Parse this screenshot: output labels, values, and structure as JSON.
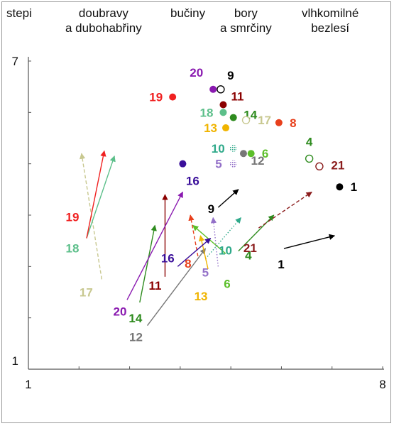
{
  "vegetation_labels": {
    "stepi": "stepi",
    "doubravy": "doubravy\na dubohabřiny",
    "buciny": "bučiny",
    "bory": "bory\na smrčiny",
    "bezlesi": "vlhkomilné\nbezlesí"
  },
  "chart_data": {
    "type": "scatter",
    "title": "",
    "xlabel": "",
    "ylabel": "",
    "xlim": [
      1,
      8
    ],
    "ylim": [
      1,
      7
    ],
    "x_ticks": [
      "1",
      "8"
    ],
    "y_ticks": [
      "1",
      "7"
    ],
    "grid": false,
    "series": [
      {
        "id": "1",
        "color": "#000000",
        "marker": "filled",
        "point": [
          7.15,
          4.55
        ],
        "arrow": {
          "from": [
            6.05,
            3.35
          ],
          "to": [
            7.05,
            3.6
          ],
          "style": "solid"
        }
      },
      {
        "id": "4",
        "color": "#2e8b1e",
        "marker": "open",
        "point": [
          6.55,
          5.1
        ],
        "arrow": {
          "from": [
            5.15,
            3.3
          ],
          "to": [
            5.85,
            4.0
          ],
          "style": "solid"
        }
      },
      {
        "id": "5",
        "color": "#9370c8",
        "marker": "hatched",
        "point": [
          5.05,
          5.0
        ],
        "arrow": {
          "from": [
            4.75,
            3.0
          ],
          "to": [
            4.65,
            3.95
          ],
          "style": "dotted"
        }
      },
      {
        "id": "6",
        "color": "#5cbf2a",
        "marker": "filled",
        "point": [
          5.4,
          5.2
        ],
        "arrow": {
          "from": [
            4.9,
            3.25
          ],
          "to": [
            4.25,
            3.8
          ],
          "style": "solid"
        }
      },
      {
        "id": "8",
        "color": "#e8401c",
        "marker": "filled",
        "point": [
          5.95,
          5.8
        ],
        "arrow": {
          "from": [
            4.35,
            3.2
          ],
          "to": [
            4.2,
            4.0
          ],
          "style": "dashed"
        }
      },
      {
        "id": "9",
        "color": "#000000",
        "marker": "open",
        "point": [
          4.8,
          6.45
        ],
        "arrow": {
          "from": [
            4.75,
            4.15
          ],
          "to": [
            5.15,
            4.5
          ],
          "style": "solid"
        }
      },
      {
        "id": "10",
        "color": "#2fa98a",
        "marker": "hatched",
        "point": [
          5.05,
          5.3
        ],
        "arrow": {
          "from": [
            4.5,
            3.15
          ],
          "to": [
            5.2,
            3.95
          ],
          "style": "dotted"
        }
      },
      {
        "id": "11",
        "color": "#8b0000",
        "marker": "filled",
        "point": [
          4.85,
          6.15
        ],
        "arrow": {
          "from": [
            3.7,
            2.8
          ],
          "to": [
            3.7,
            4.4
          ],
          "style": "solid"
        }
      },
      {
        "id": "12",
        "color": "#777777",
        "marker": "filled",
        "point": [
          5.25,
          5.2
        ],
        "arrow": {
          "from": [
            3.35,
            1.85
          ],
          "to": [
            4.5,
            3.35
          ],
          "style": "solid"
        }
      },
      {
        "id": "13",
        "color": "#f0b400",
        "marker": "filled",
        "point": [
          4.9,
          5.7
        ],
        "arrow": {
          "from": [
            4.55,
            2.95
          ],
          "to": [
            4.4,
            3.6
          ],
          "style": "solid"
        }
      },
      {
        "id": "14",
        "color": "#2e8b1e",
        "marker": "filled",
        "point": [
          5.05,
          5.9
        ],
        "arrow": {
          "from": [
            3.2,
            2.3
          ],
          "to": [
            3.5,
            3.8
          ],
          "style": "solid"
        }
      },
      {
        "id": "16",
        "color": "#3a0f9a",
        "marker": "filled",
        "point": [
          4.05,
          5.0
        ],
        "arrow": {
          "from": [
            3.95,
            3.0
          ],
          "to": [
            4.6,
            3.55
          ],
          "style": "solid"
        }
      },
      {
        "id": "17",
        "color": "#c8c890",
        "marker": "open",
        "point": [
          5.3,
          5.85
        ],
        "arrow": {
          "from": [
            2.45,
            2.75
          ],
          "to": [
            2.05,
            5.2
          ],
          "style": "dashed"
        }
      },
      {
        "id": "18",
        "color": "#5cbf8a",
        "marker": "filled",
        "point": [
          4.85,
          6.0
        ],
        "arrow": {
          "from": [
            2.15,
            3.55
          ],
          "to": [
            2.7,
            5.15
          ],
          "style": "solid"
        }
      },
      {
        "id": "19",
        "color": "#f02020",
        "marker": "filled",
        "point": [
          3.85,
          6.3
        ],
        "arrow": {
          "from": [
            2.15,
            3.55
          ],
          "to": [
            2.5,
            5.25
          ],
          "style": "solid"
        }
      },
      {
        "id": "20",
        "color": "#8a1ab0",
        "marker": "filled",
        "point": [
          4.65,
          6.45
        ],
        "arrow": {
          "from": [
            2.95,
            2.35
          ],
          "to": [
            4.05,
            4.45
          ],
          "style": "solid"
        }
      },
      {
        "id": "21",
        "color": "#8b1c1c",
        "marker": "open",
        "point": [
          6.75,
          4.95
        ],
        "arrow": {
          "from": [
            5.55,
            3.75
          ],
          "to": [
            6.6,
            4.45
          ],
          "style": "dashed"
        }
      }
    ]
  }
}
